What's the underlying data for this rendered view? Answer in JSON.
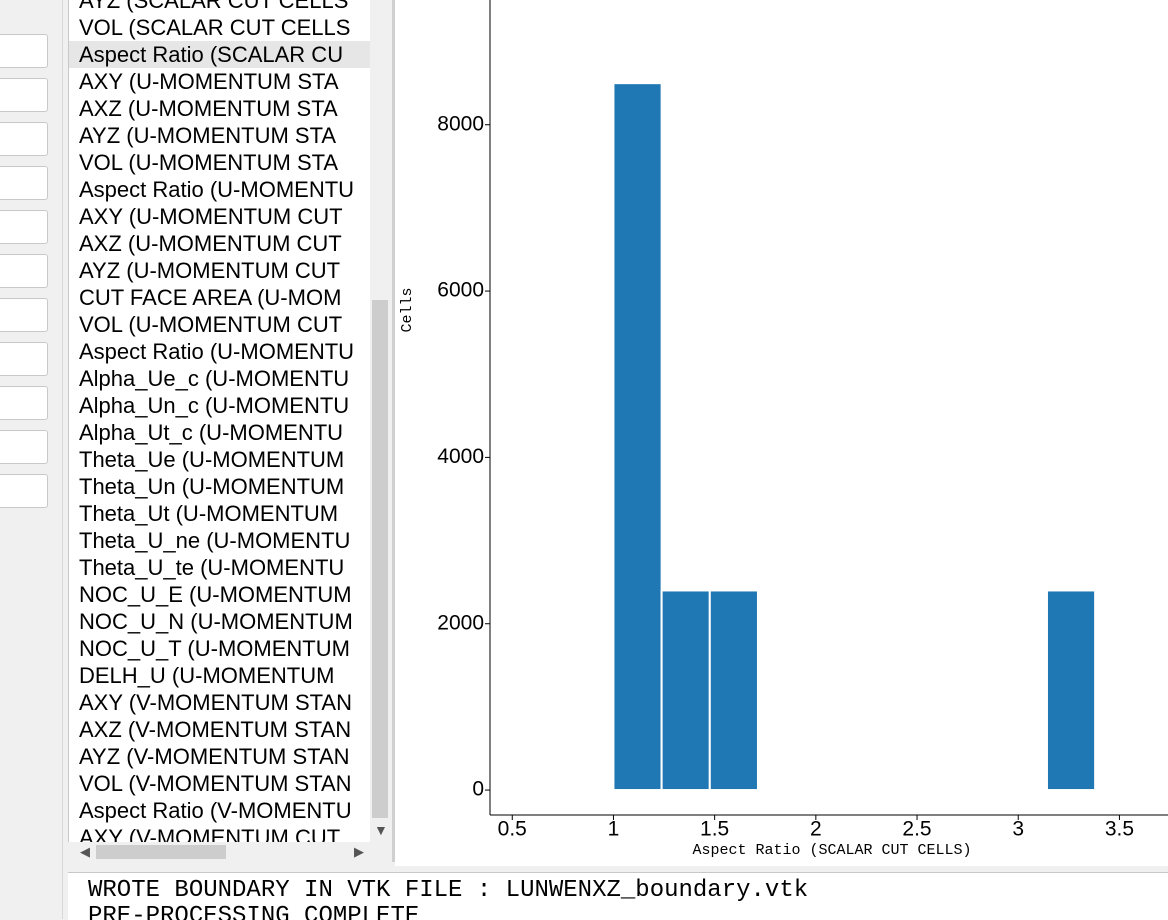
{
  "list": {
    "items": [
      "AYZ (SCALAR CUT CELLS",
      "VOL (SCALAR CUT CELLS",
      "Aspect Ratio (SCALAR CU",
      "AXY (U-MOMENTUM STA",
      "AXZ (U-MOMENTUM STA",
      "AYZ (U-MOMENTUM STA",
      "VOL (U-MOMENTUM STA",
      "Aspect Ratio (U-MOMENTU",
      "AXY (U-MOMENTUM CUT",
      "AXZ (U-MOMENTUM CUT",
      "AYZ (U-MOMENTUM CUT",
      "CUT FACE AREA (U-MOM",
      "VOL (U-MOMENTUM CUT",
      "Aspect Ratio (U-MOMENTU",
      "Alpha_Ue_c (U-MOMENTU",
      "Alpha_Un_c (U-MOMENTU",
      "Alpha_Ut_c (U-MOMENTU",
      "Theta_Ue (U-MOMENTUM",
      "Theta_Un (U-MOMENTUM",
      "Theta_Ut (U-MOMENTUM",
      "Theta_U_ne (U-MOMENTU",
      "Theta_U_te (U-MOMENTU",
      "NOC_U_E (U-MOMENTUM",
      "NOC_U_N (U-MOMENTUM",
      "NOC_U_T (U-MOMENTUM",
      "DELH_U (U-MOMENTUM",
      "AXY (V-MOMENTUM STAN",
      "AXZ (V-MOMENTUM STAN",
      "AYZ (V-MOMENTUM STAN",
      "VOL (V-MOMENTUM STAN",
      "Aspect Ratio (V-MOMENTU",
      "AXY (V-MOMENTUM CUT"
    ],
    "selected": 2
  },
  "chart_data": {
    "type": "histogram",
    "x_label": "Aspect Ratio (SCALAR CUT CELLS)",
    "y_label": "Cells",
    "bins": [
      1.0,
      1.238,
      1.476,
      1.714,
      1.952,
      2.19,
      2.428,
      2.666,
      2.904,
      3.142,
      3.38
    ],
    "values": [
      8500,
      2400,
      2400,
      0,
      0,
      0,
      0,
      0,
      0,
      2400
    ],
    "color": "#1f77b4",
    "xlim": [
      0.39,
      3.74
    ],
    "xticks": [
      0.5,
      1,
      1.5,
      2,
      2.5,
      3,
      3.5
    ],
    "ylim": [
      -300,
      9500
    ],
    "yticks": [
      0,
      2000,
      4000,
      6000,
      8000
    ]
  },
  "console": {
    "lines": [
      "WROTE BOUNDARY IN VTK FILE : LUNWENXZ_boundary.vtk",
      "PRE-PROCESSING COMPLETE"
    ]
  }
}
